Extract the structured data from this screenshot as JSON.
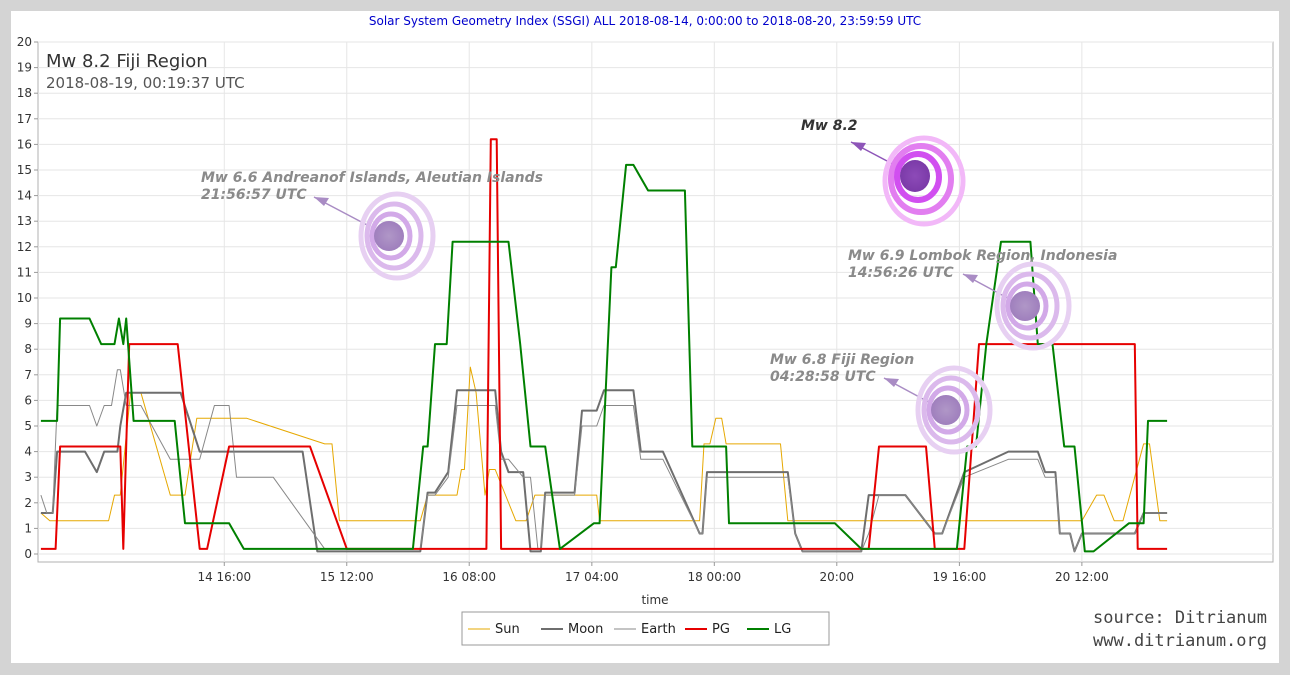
{
  "chart_data": {
    "type": "line",
    "title": "Solar System Geometry Index (SSGI) ALL 2018-08-14,  0:00:00 to 2018-08-20, 23:59:59 UTC",
    "xlabel": "time",
    "ylabel": "",
    "xlim": [
      -0.6,
      7.8
    ],
    "ylim": [
      0,
      20
    ],
    "y_ticks": [
      0,
      1,
      2,
      3,
      4,
      5,
      6,
      7,
      8,
      9,
      10,
      11,
      12,
      13,
      14,
      15,
      16,
      17,
      18,
      19,
      20
    ],
    "x_ticks": [
      {
        "value": 0.667,
        "label": "14 16:00"
      },
      {
        "value": 1.5,
        "label": "15 12:00"
      },
      {
        "value": 2.333,
        "label": "16 08:00"
      },
      {
        "value": 3.167,
        "label": "17 04:00"
      },
      {
        "value": 4.0,
        "label": "18 00:00"
      },
      {
        "value": 4.833,
        "label": "20:00"
      },
      {
        "value": 5.667,
        "label": "19 16:00"
      },
      {
        "value": 6.5,
        "label": "20 12:00"
      }
    ],
    "grid": true,
    "legend_position": "bottom-center",
    "series": [
      {
        "name": "Sun",
        "color": "#e6a800",
        "width": 1,
        "x": [
          -0.58,
          -0.52,
          -0.2,
          -0.12,
          -0.08,
          -0.04,
          0.03,
          0.1,
          0.3,
          0.4,
          0.48,
          0.55,
          0.62,
          0.82,
          1.35,
          1.4,
          1.45,
          1.5,
          2.0,
          2.05,
          2.25,
          2.28,
          2.3,
          2.34,
          2.38,
          2.44,
          2.47,
          2.51,
          2.65,
          2.67,
          2.72,
          2.78,
          2.9,
          3.2,
          3.22,
          3.9,
          3.93,
          3.97,
          4.01,
          4.05,
          4.08,
          4.12,
          4.16,
          4.45,
          4.5,
          4.52,
          4.53,
          4.55,
          4.57,
          4.6,
          4.68,
          4.7,
          4.75,
          4.82,
          5.0,
          5.1,
          5.15,
          5.2,
          5.3,
          5.35,
          5.45,
          5.5,
          6.4,
          6.46,
          6.5,
          6.6,
          6.65,
          6.72,
          6.78,
          6.92,
          6.96,
          7.03,
          7.08
        ],
        "y": [
          1.6,
          1.3,
          1.3,
          1.3,
          2.3,
          2.3,
          6.3,
          6.3,
          2.3,
          2.3,
          5.3,
          5.3,
          5.3,
          5.3,
          4.3,
          4.3,
          1.3,
          1.3,
          1.3,
          2.3,
          2.3,
          3.3,
          3.3,
          7.3,
          6.3,
          2.3,
          3.3,
          3.3,
          1.3,
          1.3,
          1.3,
          2.3,
          2.3,
          2.3,
          1.3,
          1.3,
          4.3,
          4.3,
          5.3,
          5.3,
          4.3,
          4.3,
          4.3,
          4.3,
          1.3,
          1.3,
          1.3,
          1.3,
          1.3,
          1.3,
          1.3,
          1.3,
          1.3,
          1.3,
          1.3,
          1.3,
          1.3,
          1.3,
          1.3,
          1.3,
          1.3,
          1.3,
          1.3,
          1.3,
          1.3,
          2.3,
          2.3,
          1.3,
          1.3,
          4.3,
          4.3,
          1.3,
          1.3
        ]
      },
      {
        "name": "Moon",
        "color": "#6e6e6e",
        "width": 2,
        "x": [
          -0.58,
          -0.5,
          -0.47,
          -0.28,
          -0.2,
          -0.15,
          -0.06,
          -0.04,
          0.0,
          0.1,
          0.3,
          0.37,
          0.5,
          0.6,
          0.69,
          0.8,
          0.85,
          1.2,
          1.3,
          1.35,
          1.4,
          1.5,
          2.0,
          2.05,
          2.1,
          2.19,
          2.25,
          2.51,
          2.55,
          2.6,
          2.7,
          2.75,
          2.78,
          2.82,
          2.85,
          3.05,
          3.1,
          3.2,
          3.25,
          3.45,
          3.5,
          3.6,
          3.65,
          3.9,
          3.92,
          3.95,
          4.35,
          4.5,
          4.55,
          4.6,
          5.0,
          5.05,
          5.12,
          5.25,
          5.3,
          5.5,
          5.55,
          5.7,
          6.0,
          6.1,
          6.2,
          6.25,
          6.3,
          6.32,
          6.35,
          6.42,
          6.45,
          6.5,
          6.82,
          6.86,
          6.92,
          7.02,
          7.08
        ],
        "y": [
          1.6,
          1.6,
          4.0,
          4.0,
          3.2,
          4.0,
          4.0,
          5.0,
          6.3,
          6.3,
          6.3,
          6.3,
          4.0,
          4.0,
          4.0,
          4.0,
          4.0,
          4.0,
          0.1,
          0.1,
          0.1,
          0.1,
          0.1,
          2.4,
          2.4,
          3.2,
          6.4,
          6.4,
          4.0,
          3.2,
          3.2,
          0.1,
          0.1,
          0.1,
          2.4,
          2.4,
          5.6,
          5.6,
          6.4,
          6.4,
          4.0,
          4.0,
          4.0,
          0.8,
          0.8,
          3.2,
          3.2,
          3.2,
          0.8,
          0.1,
          0.1,
          2.3,
          2.3,
          2.3,
          2.3,
          0.8,
          0.8,
          3.2,
          4.0,
          4.0,
          4.0,
          3.2,
          3.2,
          3.2,
          0.8,
          0.8,
          0.1,
          0.8,
          0.8,
          0.8,
          1.6,
          1.6,
          1.6
        ]
      },
      {
        "name": "Earth",
        "color": "#888888",
        "width": 1,
        "x": [
          -0.58,
          -0.54,
          -0.5,
          -0.47,
          -0.3,
          -0.25,
          -0.2,
          -0.15,
          -0.1,
          -0.06,
          -0.04,
          0.0,
          0.1,
          0.3,
          0.4,
          0.5,
          0.6,
          0.7,
          0.75,
          0.8,
          0.84,
          1.0,
          1.35,
          1.4,
          1.5,
          2.0,
          2.05,
          2.1,
          2.19,
          2.25,
          2.51,
          2.55,
          2.6,
          2.7,
          2.75,
          2.8,
          2.82,
          2.85,
          3.05,
          3.1,
          3.2,
          3.25,
          3.45,
          3.5,
          3.6,
          3.65,
          3.9,
          3.92,
          3.95,
          4.35,
          4.5,
          4.55,
          4.6,
          5.0,
          5.05,
          5.12,
          5.25,
          5.3,
          5.5,
          5.55,
          5.7,
          6.0,
          6.1,
          6.2,
          6.25,
          6.3,
          6.32,
          6.35,
          6.42,
          6.45,
          6.5,
          6.82,
          6.86,
          6.92,
          7.02,
          7.08
        ],
        "y": [
          2.3,
          1.6,
          1.6,
          5.8,
          5.8,
          5.8,
          5.0,
          5.8,
          5.8,
          7.2,
          7.2,
          5.8,
          5.8,
          3.7,
          3.7,
          3.7,
          5.8,
          5.8,
          3.0,
          3.0,
          3.0,
          3.0,
          0.2,
          0.2,
          0.2,
          0.2,
          2.3,
          2.3,
          3.0,
          5.8,
          5.8,
          3.7,
          3.7,
          3.0,
          3.0,
          0.2,
          0.2,
          2.3,
          2.3,
          5.0,
          5.0,
          5.8,
          5.8,
          3.7,
          3.7,
          3.7,
          0.8,
          0.8,
          3.0,
          3.0,
          3.0,
          0.8,
          0.1,
          0.1,
          0.8,
          2.3,
          2.3,
          2.3,
          0.8,
          0.8,
          3.0,
          3.7,
          3.7,
          3.7,
          3.0,
          3.0,
          3.0,
          0.8,
          0.8,
          0.1,
          0.8,
          0.8,
          0.8,
          1.6,
          1.6,
          1.6
        ]
      },
      {
        "name": "PG",
        "color": "#e60000",
        "width": 2,
        "x": [
          -0.58,
          -0.48,
          -0.45,
          -0.2,
          -0.04,
          -0.02,
          0.0,
          0.02,
          0.05,
          0.3,
          0.35,
          0.5,
          0.55,
          0.7,
          0.75,
          1.2,
          1.25,
          1.5,
          1.55,
          2.05,
          2.45,
          2.48,
          2.52,
          2.55,
          2.58,
          2.6,
          3.0,
          3.4,
          3.8,
          4.2,
          4.6,
          4.82,
          5.0,
          5.05,
          5.12,
          5.2,
          5.4,
          5.44,
          5.5,
          5.56,
          5.7,
          5.8,
          6.0,
          6.2,
          6.4,
          6.65,
          6.8,
          6.86,
          6.88,
          6.92,
          7.0,
          7.08
        ],
        "y": [
          0.2,
          0.2,
          4.2,
          4.2,
          4.2,
          0.2,
          4.2,
          8.2,
          8.2,
          8.2,
          8.2,
          0.2,
          0.2,
          4.2,
          4.2,
          4.2,
          4.2,
          0.2,
          0.2,
          0.2,
          0.2,
          16.2,
          16.2,
          0.2,
          0.2,
          0.2,
          0.2,
          0.2,
          0.2,
          0.2,
          0.2,
          0.2,
          0.2,
          0.2,
          4.2,
          4.2,
          4.2,
          4.2,
          0.2,
          0.2,
          0.2,
          8.2,
          8.2,
          8.2,
          8.2,
          8.2,
          8.2,
          8.2,
          0.2,
          0.2,
          0.2,
          0.2
        ]
      },
      {
        "name": "LG",
        "color": "#008000",
        "width": 2,
        "x": [
          -0.58,
          -0.47,
          -0.45,
          -0.3,
          -0.25,
          -0.17,
          -0.08,
          -0.05,
          -0.02,
          0.0,
          0.05,
          0.25,
          0.33,
          0.4,
          0.6,
          0.65,
          0.7,
          0.8,
          1.0,
          1.5,
          1.9,
          1.95,
          2.02,
          2.05,
          2.1,
          2.18,
          2.22,
          2.3,
          2.52,
          2.55,
          2.6,
          2.68,
          2.75,
          2.85,
          2.95,
          3.18,
          3.22,
          3.3,
          3.33,
          3.4,
          3.45,
          3.55,
          3.6,
          3.8,
          3.85,
          4.08,
          4.1,
          4.4,
          4.6,
          4.82,
          5.0,
          5.35,
          5.5,
          5.55,
          5.6,
          5.65,
          5.72,
          5.78,
          5.85,
          5.95,
          6.05,
          6.1,
          6.15,
          6.2,
          6.3,
          6.38,
          6.45,
          6.52,
          6.58,
          6.82,
          6.92,
          6.95,
          7.0,
          7.08
        ],
        "y": [
          5.2,
          5.2,
          9.2,
          9.2,
          9.2,
          8.2,
          8.2,
          9.2,
          8.2,
          9.2,
          5.2,
          5.2,
          5.2,
          1.2,
          1.2,
          1.2,
          1.2,
          0.2,
          0.2,
          0.2,
          0.2,
          0.2,
          4.2,
          4.2,
          8.2,
          8.2,
          12.2,
          12.2,
          12.2,
          12.2,
          12.2,
          8.2,
          4.2,
          4.2,
          0.2,
          1.2,
          1.2,
          11.2,
          11.2,
          15.2,
          15.2,
          14.2,
          14.2,
          14.2,
          4.2,
          4.2,
          1.2,
          1.2,
          1.2,
          1.2,
          0.2,
          0.2,
          0.2,
          0.2,
          0.2,
          0.2,
          4.2,
          4.2,
          8.2,
          12.2,
          12.2,
          12.2,
          12.2,
          8.2,
          8.2,
          4.2,
          4.2,
          0.1,
          0.1,
          1.2,
          1.2,
          5.2,
          5.2,
          5.2
        ]
      }
    ],
    "event": {
      "title": "Mw 8.2 Fiji Region",
      "time": "2018-08-19, 00:19:37 UTC"
    },
    "annotations": [
      {
        "id": "andreanof",
        "text1": "Mw 6.6 Andreanof Islands, Aleutian Islands",
        "text2": "21:56:57 UTC",
        "primary": false
      },
      {
        "id": "fiji82",
        "text1": "Mw 8.2",
        "text2": "",
        "primary": true
      },
      {
        "id": "lombok",
        "text1": "Mw 6.9 Lombok Region, Indonesia",
        "text2": "14:56:26 UTC",
        "primary": false
      },
      {
        "id": "fiji68",
        "text1": "Mw 6.8 Fiji Region",
        "text2": "04:28:58 UTC",
        "primary": false
      }
    ],
    "legend": [
      "Sun",
      "Moon",
      "Earth",
      "PG",
      "LG"
    ],
    "source_lines": [
      "source: Ditrianum",
      "www.ditrianum.org"
    ]
  }
}
